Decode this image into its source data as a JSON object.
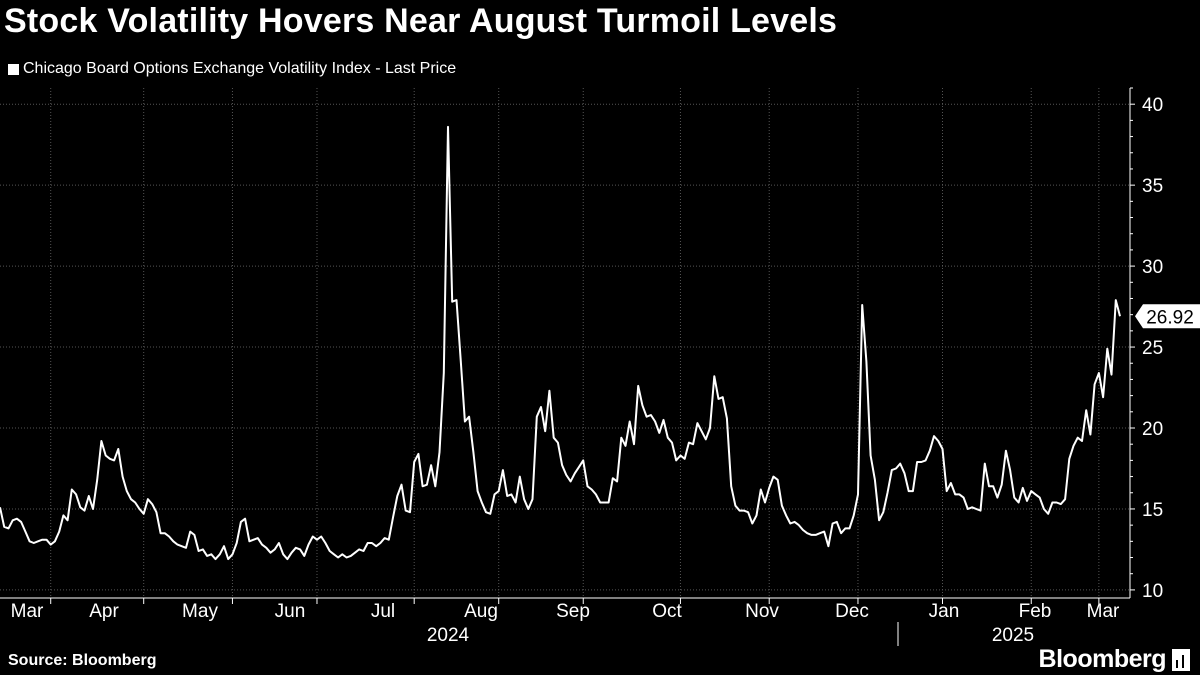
{
  "header": {
    "title": "Stock Volatility Hovers Near August Turmoil Levels",
    "legend_label": "Chicago Board Options Exchange Volatility Index - Last Price"
  },
  "footer": {
    "source": "Source: Bloomberg",
    "brand": "Bloomberg"
  },
  "colors": {
    "background": "#000000",
    "line": "#ffffff",
    "grid": "#555555"
  },
  "chart_data": {
    "type": "line",
    "series": [
      {
        "values": [
          15.1,
          13.9,
          13.8,
          14.3,
          14.4,
          14.2,
          13.6,
          13.0,
          12.9,
          13.0,
          13.1,
          13.1,
          12.8,
          13.0,
          13.6,
          14.6,
          14.3,
          16.2,
          15.9,
          15.1,
          14.9,
          15.8,
          15.0,
          16.8,
          19.2,
          18.3,
          18.1,
          18.0,
          18.7,
          17.0,
          16.1,
          15.6,
          15.4,
          15.0,
          14.7,
          15.6,
          15.3,
          14.8,
          13.5,
          13.5,
          13.3,
          13.0,
          12.8,
          12.7,
          12.6,
          13.6,
          13.4,
          12.4,
          12.5,
          12.1,
          12.2,
          11.9,
          12.2,
          12.7,
          11.9,
          12.2,
          12.9,
          14.2,
          14.4,
          13.0,
          13.1,
          13.2,
          12.8,
          12.6,
          12.3,
          12.5,
          12.9,
          12.2,
          11.9,
          12.3,
          12.6,
          12.5,
          12.1,
          12.8,
          13.3,
          13.1,
          13.3,
          12.9,
          12.4,
          12.2,
          12.0,
          12.2,
          12.0,
          12.1,
          12.3,
          12.5,
          12.4,
          12.9,
          12.9,
          12.7,
          12.9,
          13.2,
          13.1,
          14.5,
          15.8,
          16.5,
          14.9,
          14.8,
          17.9,
          18.4,
          16.4,
          16.5,
          17.7,
          16.4,
          18.5,
          23.4,
          38.6,
          27.8,
          27.9,
          24.2,
          20.4,
          20.7,
          18.5,
          16.1,
          15.4,
          14.8,
          14.7,
          15.9,
          16.1,
          17.4,
          15.8,
          15.9,
          15.4,
          17.0,
          15.6,
          15.0,
          15.6,
          20.7,
          21.3,
          19.8,
          22.3,
          19.4,
          19.1,
          17.7,
          17.1,
          16.7,
          17.2,
          17.6,
          18.0,
          16.4,
          16.2,
          15.9,
          15.4,
          15.4,
          15.4,
          16.9,
          16.7,
          19.4,
          18.9,
          20.4,
          19.0,
          22.6,
          21.4,
          20.7,
          20.8,
          20.4,
          19.7,
          20.5,
          19.4,
          19.1,
          18.0,
          18.3,
          18.1,
          19.1,
          19.0,
          20.3,
          19.8,
          19.3,
          20.0,
          23.2,
          21.8,
          21.9,
          20.6,
          16.4,
          15.2,
          14.9,
          14.9,
          14.8,
          14.1,
          14.6,
          16.2,
          15.4,
          16.3,
          17.0,
          16.8,
          15.2,
          14.6,
          14.1,
          14.2,
          14.0,
          13.7,
          13.5,
          13.4,
          13.4,
          13.5,
          13.6,
          12.7,
          14.1,
          14.2,
          13.5,
          13.8,
          13.8,
          14.6,
          15.9,
          27.6,
          24.1,
          18.3,
          16.8,
          14.3,
          14.8,
          16.0,
          17.4,
          17.5,
          17.8,
          17.2,
          16.1,
          16.1,
          17.9,
          17.9,
          18.0,
          18.6,
          19.5,
          19.2,
          18.7,
          16.1,
          16.6,
          15.9,
          15.9,
          15.7,
          15.0,
          15.1,
          15.0,
          14.9,
          17.8,
          16.4,
          16.4,
          15.7,
          16.5,
          18.6,
          17.4,
          15.7,
          15.4,
          16.3,
          15.5,
          16.1,
          15.9,
          15.7,
          15.0,
          14.7,
          15.4,
          15.4,
          15.3,
          15.6,
          18.1,
          18.9,
          19.4,
          19.2,
          21.1,
          19.6,
          22.7,
          23.4,
          21.9,
          24.9,
          23.3,
          27.9,
          26.9
        ]
      }
    ],
    "x_ticks": [
      "Mar",
      "Apr",
      "May",
      "Jun",
      "Jul",
      "Aug",
      "Sep",
      "Oct",
      "Nov",
      "Dec",
      "Jan",
      "Feb",
      "Mar"
    ],
    "years": [
      "2024",
      "2025"
    ],
    "y_ticks": [
      10,
      15,
      20,
      25,
      30,
      35,
      40
    ],
    "ylim": [
      9.5,
      41
    ],
    "last_value_label": "26.92",
    "grid": true,
    "y_axis_side": "right"
  }
}
